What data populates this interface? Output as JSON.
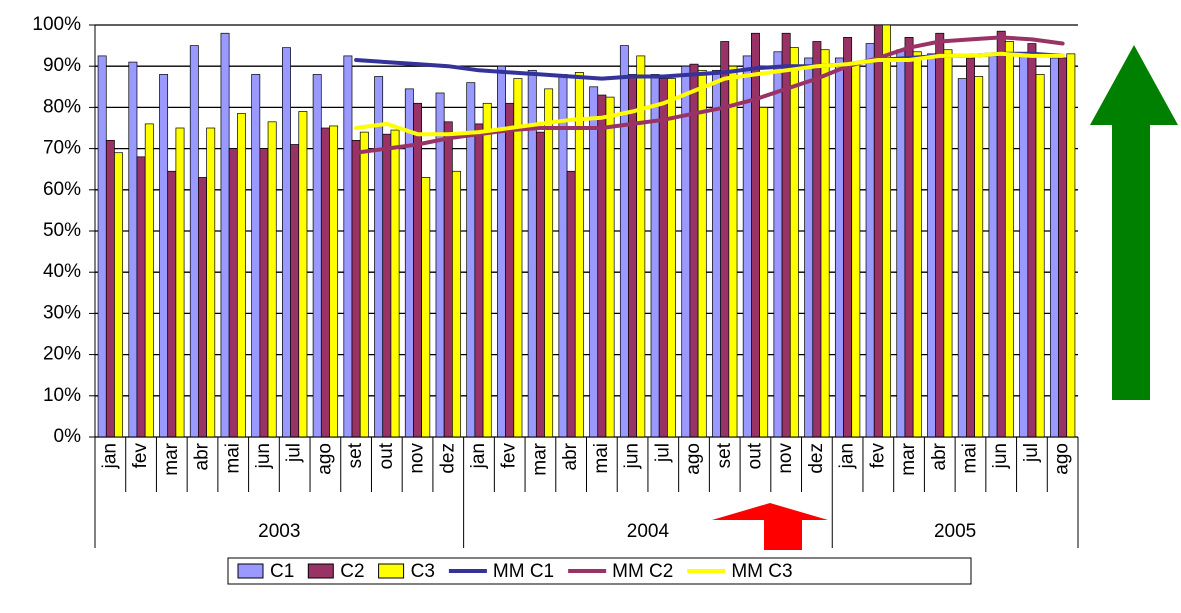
{
  "chart_data": {
    "type": "bar",
    "category_groups": [
      {
        "label": "2003",
        "categories": [
          "jan",
          "fev",
          "mar",
          "abr",
          "mai",
          "jun",
          "jul",
          "ago",
          "set",
          "out",
          "nov",
          "dez"
        ]
      },
      {
        "label": "2004",
        "categories": [
          "jan",
          "fev",
          "mar",
          "abr",
          "mai",
          "jun",
          "jul",
          "ago",
          "set",
          "out",
          "nov",
          "dez"
        ]
      },
      {
        "label": "2005",
        "categories": [
          "jan",
          "fev",
          "mar",
          "abr",
          "mai",
          "jun",
          "jul",
          "ago"
        ]
      }
    ],
    "series": [
      {
        "name": "C1",
        "type": "bar",
        "color": "#9999ff",
        "values": [
          92.5,
          91,
          88,
          95,
          98,
          88,
          94.5,
          88,
          92.5,
          87.5,
          84.5,
          83.5,
          86,
          90,
          89,
          88,
          85,
          95,
          88,
          90,
          89,
          92.5,
          93.5,
          92,
          92,
          95.5,
          94,
          93,
          87,
          92.5,
          93,
          92
        ]
      },
      {
        "name": "C2",
        "type": "bar",
        "color": "#993366",
        "values": [
          72,
          68,
          64.5,
          63,
          70,
          70,
          71,
          75,
          72,
          73.5,
          81,
          76.5,
          76,
          81,
          74,
          64.5,
          83,
          88,
          87,
          90.5,
          96,
          98,
          98,
          96,
          97,
          100,
          97,
          98,
          92,
          98.5,
          95.5,
          92
        ]
      },
      {
        "name": "C3",
        "type": "bar",
        "color": "#ffff00",
        "values": [
          69,
          76,
          75,
          75,
          78.5,
          76.5,
          79,
          75.5,
          74,
          74.5,
          63,
          64.5,
          81,
          87,
          84.5,
          88.5,
          82.5,
          92.5,
          87,
          89,
          90,
          80,
          94.5,
          94,
          91,
          100,
          93.5,
          94,
          87.5,
          96,
          88,
          93
        ]
      },
      {
        "name": "MM C1",
        "type": "line",
        "color": "#333399",
        "values": [
          null,
          null,
          null,
          null,
          null,
          null,
          null,
          null,
          91.5,
          91,
          90.5,
          90,
          89,
          88.5,
          88,
          87.5,
          87,
          87.5,
          87.5,
          88,
          88.5,
          89.5,
          90,
          90,
          90.5,
          91.5,
          92,
          92.5,
          92.5,
          93,
          93,
          92.5
        ]
      },
      {
        "name": "MM C2",
        "type": "line",
        "color": "#993366",
        "values": [
          null,
          null,
          null,
          null,
          null,
          null,
          null,
          null,
          69,
          70,
          71,
          72.5,
          73.5,
          74.5,
          75,
          75,
          75,
          76,
          77,
          78.5,
          80,
          82,
          84.5,
          87,
          90,
          92,
          94.5,
          96,
          96.5,
          97,
          96.5,
          95.5
        ]
      },
      {
        "name": "MM C3",
        "type": "line",
        "color": "#ffff00",
        "values": [
          null,
          null,
          null,
          null,
          null,
          null,
          null,
          null,
          75,
          76,
          73.5,
          73.5,
          74,
          75,
          76,
          77,
          77.5,
          79,
          81,
          84,
          87,
          88,
          89,
          90,
          90.5,
          91.5,
          91.5,
          92.5,
          92.5,
          93,
          92.5,
          92.5
        ]
      }
    ],
    "ylim": [
      0,
      100
    ],
    "yticks": [
      {
        "value": 0,
        "label": "0%"
      },
      {
        "value": 10,
        "label": "10%"
      },
      {
        "value": 20,
        "label": "20%"
      },
      {
        "value": 30,
        "label": "30%"
      },
      {
        "value": 40,
        "label": "40%"
      },
      {
        "value": 50,
        "label": "50%"
      },
      {
        "value": 60,
        "label": "60%"
      },
      {
        "value": 70,
        "label": "70%"
      },
      {
        "value": 80,
        "label": "80%"
      },
      {
        "value": 90,
        "label": "90%"
      },
      {
        "value": 100,
        "label": "100%"
      }
    ],
    "grid": true,
    "legend": "bottom"
  }
}
